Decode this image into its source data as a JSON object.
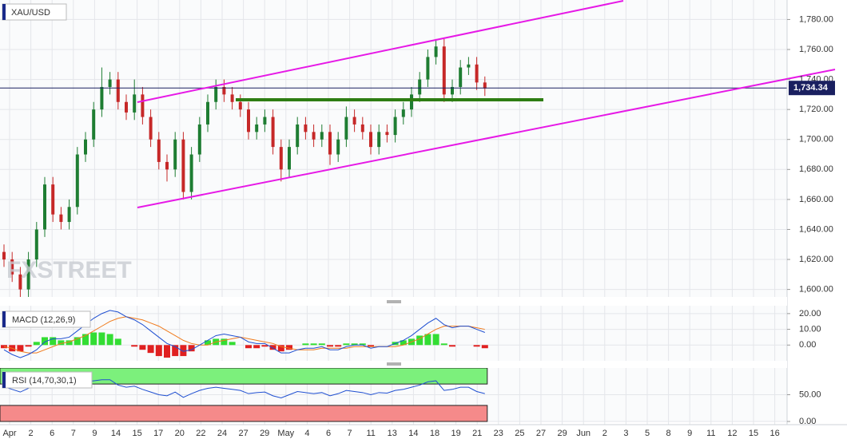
{
  "chart_data": [
    {
      "type": "candlestick",
      "title": "XAU/USD",
      "watermark": "FXSTREET",
      "open": [
        1625,
        1620,
        1610,
        1600,
        1620,
        1640,
        1670,
        1650,
        1645,
        1655,
        1690,
        1700,
        1720,
        1735,
        1740,
        1725,
        1718,
        1730,
        1715,
        1700,
        1685,
        1680,
        1700,
        1665,
        1690,
        1710,
        1725,
        1735,
        1730,
        1725,
        1720,
        1705,
        1710,
        1715,
        1695,
        1680,
        1695,
        1710,
        1705,
        1700,
        1705,
        1690,
        1700,
        1715,
        1710,
        1705,
        1695,
        1705,
        1703,
        1715,
        1720,
        1730,
        1740,
        1755,
        1762,
        1730,
        1735,
        1748,
        1750,
        1738
      ],
      "high": [
        1630,
        1625,
        1615,
        1625,
        1645,
        1675,
        1675,
        1655,
        1660,
        1695,
        1705,
        1725,
        1748,
        1745,
        1745,
        1730,
        1740,
        1735,
        1720,
        1705,
        1690,
        1705,
        1705,
        1695,
        1715,
        1730,
        1740,
        1740,
        1735,
        1730,
        1725,
        1715,
        1720,
        1720,
        1700,
        1700,
        1715,
        1715,
        1710,
        1710,
        1710,
        1705,
        1722,
        1720,
        1715,
        1710,
        1710,
        1710,
        1720,
        1725,
        1735,
        1745,
        1760,
        1767,
        1767,
        1740,
        1753,
        1755,
        1755,
        1742
      ],
      "low": [
        1615,
        1605,
        1593,
        1595,
        1615,
        1635,
        1645,
        1640,
        1640,
        1650,
        1685,
        1695,
        1715,
        1730,
        1720,
        1713,
        1713,
        1710,
        1695,
        1680,
        1672,
        1675,
        1660,
        1660,
        1685,
        1705,
        1720,
        1725,
        1720,
        1715,
        1700,
        1700,
        1705,
        1690,
        1672,
        1675,
        1690,
        1700,
        1695,
        1695,
        1683,
        1685,
        1695,
        1705,
        1700,
        1690,
        1690,
        1698,
        1698,
        1710,
        1715,
        1725,
        1735,
        1750,
        1725,
        1725,
        1730,
        1743,
        1733,
        1729
      ],
      "close": [
        1620,
        1610,
        1600,
        1620,
        1640,
        1670,
        1650,
        1645,
        1655,
        1690,
        1700,
        1720,
        1735,
        1740,
        1725,
        1718,
        1730,
        1715,
        1700,
        1685,
        1680,
        1700,
        1665,
        1690,
        1710,
        1725,
        1735,
        1730,
        1725,
        1720,
        1705,
        1710,
        1715,
        1695,
        1680,
        1695,
        1710,
        1705,
        1700,
        1705,
        1690,
        1700,
        1715,
        1710,
        1705,
        1695,
        1705,
        1703,
        1715,
        1720,
        1730,
        1740,
        1755,
        1762,
        1730,
        1735,
        1748,
        1750,
        1738,
        1734
      ],
      "up_color": "#1e7d32",
      "down_color": "#c62828",
      "last_price": {
        "value": 1734.34,
        "label": "1,734.34"
      },
      "ylim": [
        1595,
        1793
      ],
      "yticks": [
        {
          "value": 1600,
          "label": "1,600.00"
        },
        {
          "value": 1620,
          "label": "1,620.00"
        },
        {
          "value": 1640,
          "label": "1,640.00"
        },
        {
          "value": 1660,
          "label": "1,660.00"
        },
        {
          "value": 1680,
          "label": "1,680.00"
        },
        {
          "value": 1700,
          "label": "1,700.00"
        },
        {
          "value": 1720,
          "label": "1,720.00"
        },
        {
          "value": 1740,
          "label": "1,740.00"
        },
        {
          "value": 1760,
          "label": "1,760.00"
        },
        {
          "value": 1780,
          "label": "1,780.00"
        }
      ],
      "x_labels": [
        "Apr",
        "2",
        "6",
        "7",
        "9",
        "14",
        "15",
        "17",
        "20",
        "22",
        "24",
        "27",
        "29",
        "May",
        "4",
        "6",
        "7",
        "11",
        "13",
        "14",
        "18",
        "19",
        "21",
        "23",
        "25",
        "27",
        "29",
        "Jun",
        "2",
        "3",
        "5",
        "8",
        "9",
        "11",
        "12",
        "15",
        "16"
      ],
      "grid": true
    },
    {
      "type": "macd",
      "title": "MACD (12,26,9)",
      "macd": [
        -3,
        -6,
        -8,
        -6,
        -3,
        2,
        4,
        4,
        5,
        9,
        13,
        17,
        20,
        22,
        21,
        18,
        16,
        13,
        9,
        5,
        1,
        -1,
        -4,
        -3,
        0,
        3,
        6,
        7,
        6,
        5,
        2,
        1,
        1,
        -2,
        -5,
        -5,
        -3,
        -2,
        -2,
        -1,
        -3,
        -3,
        -1,
        0,
        0,
        -2,
        -1,
        -1,
        1,
        3,
        6,
        10,
        14,
        17,
        13,
        11,
        12,
        12,
        10,
        8
      ],
      "signal": [
        -1,
        -2,
        -4,
        -5,
        -5,
        -3,
        -1,
        1,
        2,
        4,
        6,
        9,
        12,
        15,
        17,
        18,
        17,
        16,
        14,
        12,
        9,
        6,
        3,
        1,
        0,
        0,
        2,
        3,
        4,
        5,
        4,
        3,
        2,
        1,
        -1,
        -2,
        -3,
        -3,
        -3,
        -2,
        -2,
        -2,
        -2,
        -1,
        -1,
        -1,
        -1,
        -1,
        -1,
        0,
        2,
        4,
        7,
        10,
        12,
        12,
        12,
        12,
        11,
        10
      ],
      "histogram": [
        -2,
        -4,
        -4,
        -1,
        2,
        5,
        5,
        3,
        3,
        5,
        7,
        8,
        8,
        7,
        4,
        0,
        -1,
        -3,
        -5,
        -7,
        -8,
        -7,
        -7,
        -4,
        0,
        3,
        4,
        4,
        2,
        0,
        -2,
        -2,
        -1,
        -3,
        -4,
        -3,
        0,
        1,
        1,
        1,
        -1,
        -1,
        1,
        1,
        1,
        -1,
        0,
        0,
        2,
        3,
        4,
        6,
        7,
        7,
        1,
        -1,
        0,
        0,
        -1,
        -2
      ],
      "macd_color": "#1f4fd1",
      "signal_color": "#f07b1d",
      "up_color": "#33dd33",
      "down_color": "#e02020",
      "ylim": [
        -10,
        25
      ],
      "yticks": [
        {
          "value": 0,
          "label": "0.00"
        },
        {
          "value": 10,
          "label": "10.00"
        },
        {
          "value": 20,
          "label": "20.00"
        }
      ]
    },
    {
      "type": "rsi",
      "title": "RSI (14,70,30,1)",
      "values": [
        65,
        60,
        55,
        62,
        68,
        74,
        66,
        64,
        66,
        72,
        74,
        76,
        78,
        78,
        68,
        64,
        66,
        60,
        55,
        50,
        48,
        55,
        45,
        52,
        58,
        62,
        64,
        62,
        60,
        58,
        52,
        54,
        55,
        48,
        44,
        50,
        56,
        54,
        52,
        54,
        48,
        52,
        58,
        56,
        54,
        50,
        54,
        53,
        58,
        60,
        64,
        68,
        74,
        76,
        58,
        60,
        64,
        64,
        56,
        52
      ],
      "color": "#1f4fd1",
      "levels": [
        70,
        30
      ],
      "upper_color": "#7cf07c",
      "lower_color": "#f58a8a",
      "ylim": [
        0,
        100
      ],
      "yticks": [
        {
          "value": 0,
          "label": "0.00"
        },
        {
          "value": 50,
          "label": "50.00"
        }
      ]
    }
  ]
}
